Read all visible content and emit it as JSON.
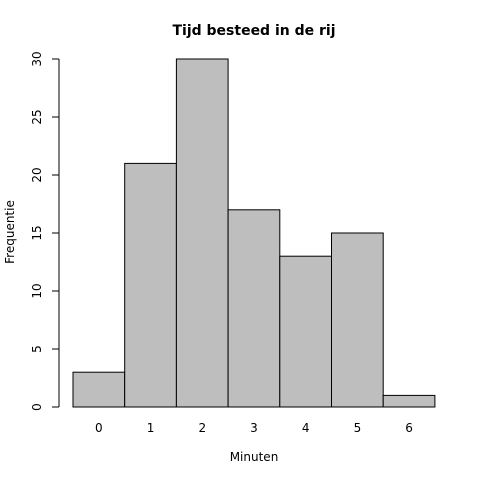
{
  "chart_data": {
    "type": "bar",
    "title": "Tijd besteed in de rij",
    "xlabel": "Minuten",
    "ylabel": "Frequentie",
    "categories": [
      "0",
      "1",
      "2",
      "3",
      "4",
      "5",
      "6"
    ],
    "values": [
      3,
      21,
      30,
      17,
      13,
      15,
      1
    ],
    "ylim": [
      0,
      30
    ],
    "yticks": [
      "0",
      "5",
      "10",
      "15",
      "20",
      "25",
      "30"
    ],
    "colors": {
      "bar_fill": "#bebebe",
      "bar_stroke": "#000000"
    },
    "grid": false,
    "legend": "none"
  }
}
